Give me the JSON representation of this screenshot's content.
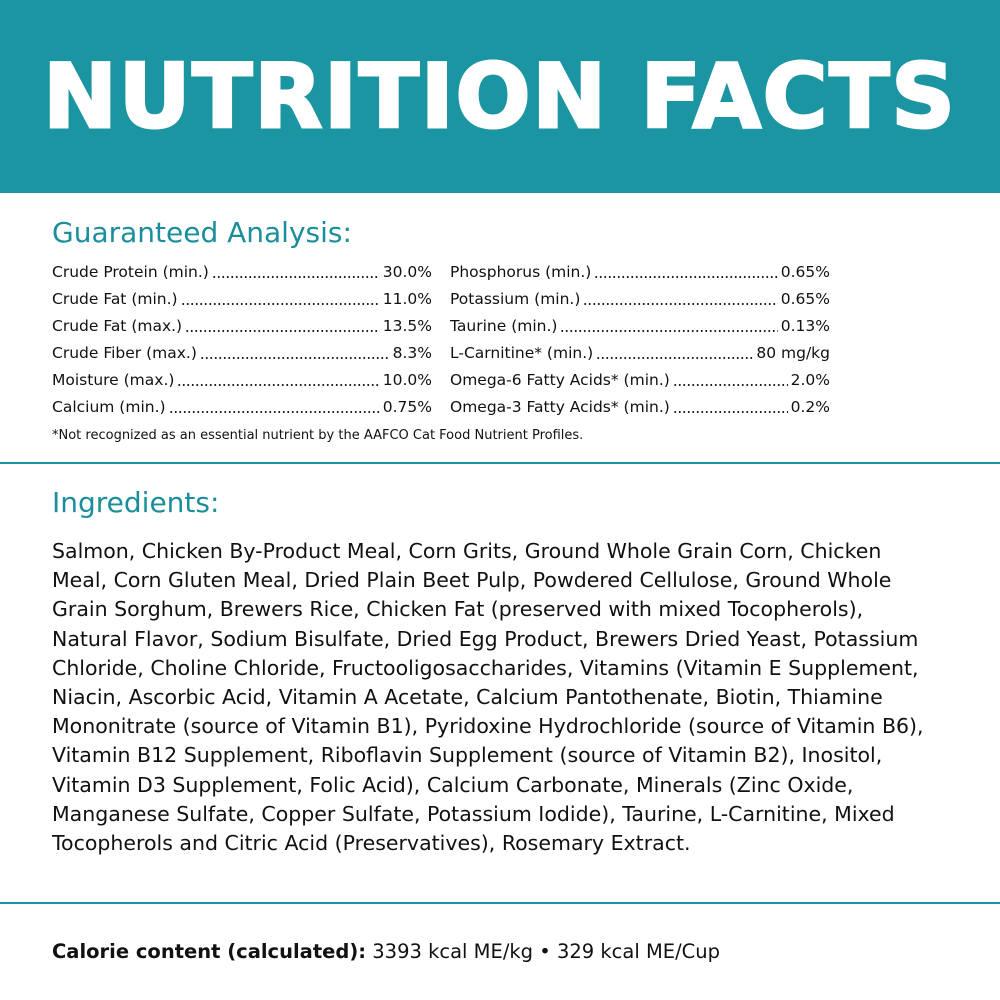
{
  "header": {
    "title": "NUTRITION FACTS"
  },
  "analysis": {
    "heading": "Guaranteed Analysis:",
    "left": [
      {
        "label": "Crude Protein (min.)",
        "value": "30.0%"
      },
      {
        "label": "Crude Fat (min.)",
        "value": "11.0%"
      },
      {
        "label": "Crude Fat (max.)",
        "value": "13.5%"
      },
      {
        "label": "Crude Fiber (max.)",
        "value": "8.3%"
      },
      {
        "label": "Moisture (max.)",
        "value": "10.0%"
      },
      {
        "label": "Calcium (min.)",
        "value": "0.75%"
      }
    ],
    "right": [
      {
        "label": "Phosphorus (min.)",
        "value": "0.65%"
      },
      {
        "label": "Potassium (min.)",
        "value": "0.65%"
      },
      {
        "label": "Taurine (min.)",
        "value": "0.13%"
      },
      {
        "label": "L-Carnitine* (min.)",
        "value": "80 mg/kg"
      },
      {
        "label": "Omega-6 Fatty Acids* (min.)",
        "value": "2.0%"
      },
      {
        "label": "Omega-3 Fatty Acids* (min.)",
        "value": "0.2%"
      }
    ],
    "footnote": "*Not recognized as an essential nutrient by the AAFCO Cat Food Nutrient Profiles."
  },
  "ingredients": {
    "heading": "Ingredients:",
    "text": "Salmon, Chicken By-Product Meal, Corn Grits, Ground Whole Grain Corn, Chicken Meal, Corn Gluten Meal, Dried Plain Beet Pulp, Powdered Cellulose, Ground Whole Grain Sorghum, Brewers Rice, Chicken Fat (preserved with mixed Tocopherols), Natural Flavor, Sodium Bisulfate, Dried Egg Product, Brewers Dried Yeast, Potassium Chloride, Choline Chloride, Fructooligosaccharides, Vitamins (Vitamin E Supplement, Niacin, Ascorbic Acid, Vitamin A Acetate, Calcium Pantothenate, Biotin, Thiamine Mononitrate (source of Vitamin B1), Pyridoxine Hydrochloride (source of Vitamin B6), Vitamin B12 Supplement, Riboflavin Supplement (source of Vitamin B2), Inositol, Vitamin D3 Supplement, Folic Acid), Calcium Carbonate, Minerals (Zinc Oxide, Manganese Sulfate, Copper Sulfate, Potassium Iodide), Taurine, L-Carnitine, Mixed Tocopherols and Citric Acid (Preservatives), Rosemary Extract."
  },
  "calorie": {
    "label": "Calorie content (calculated):",
    "value": "3393 kcal ME/kg • 329 kcal ME/Cup"
  }
}
